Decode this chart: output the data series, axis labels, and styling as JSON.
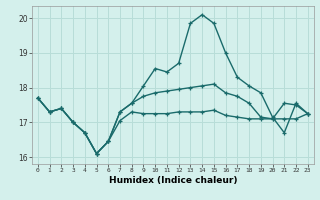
{
  "xlabel": "Humidex (Indice chaleur)",
  "ylabel": "",
  "bg_color": "#d4f0ec",
  "grid_color": "#b8ddd8",
  "line_color": "#1a6b6b",
  "xlim": [
    -0.5,
    23.5
  ],
  "ylim": [
    15.8,
    20.35
  ],
  "yticks": [
    16,
    17,
    18,
    19,
    20
  ],
  "xticks": [
    0,
    1,
    2,
    3,
    4,
    5,
    6,
    7,
    8,
    9,
    10,
    11,
    12,
    13,
    14,
    15,
    16,
    17,
    18,
    19,
    20,
    21,
    22,
    23
  ],
  "series_low_x": [
    0,
    1,
    2,
    3,
    4,
    5,
    6,
    7,
    8,
    9,
    10,
    11,
    12,
    13,
    14,
    15,
    16,
    17,
    18,
    19,
    20,
    21,
    22,
    23
  ],
  "series_low_y": [
    17.7,
    17.3,
    17.4,
    17.0,
    16.7,
    16.1,
    16.45,
    17.05,
    17.3,
    17.25,
    17.25,
    17.25,
    17.3,
    17.3,
    17.3,
    17.35,
    17.2,
    17.15,
    17.1,
    17.1,
    17.1,
    17.1,
    17.1,
    17.25
  ],
  "series_mid_x": [
    0,
    1,
    2,
    3,
    4,
    5,
    6,
    7,
    8,
    9,
    10,
    11,
    12,
    13,
    14,
    15,
    16,
    17,
    18,
    19,
    20,
    21,
    22,
    23
  ],
  "series_mid_y": [
    17.7,
    17.3,
    17.4,
    17.0,
    16.7,
    16.1,
    16.45,
    17.3,
    17.55,
    17.75,
    17.85,
    17.9,
    17.95,
    18.0,
    18.05,
    18.1,
    17.85,
    17.75,
    17.55,
    17.15,
    17.1,
    17.55,
    17.5,
    17.25
  ],
  "series_high_x": [
    0,
    1,
    2,
    3,
    4,
    5,
    6,
    7,
    8,
    9,
    10,
    11,
    12,
    13,
    14,
    15,
    16,
    17,
    18,
    19,
    20,
    21,
    22,
    23
  ],
  "series_high_y": [
    17.7,
    17.3,
    17.4,
    17.0,
    16.7,
    16.1,
    16.45,
    17.3,
    17.55,
    18.05,
    18.55,
    18.45,
    18.7,
    19.85,
    20.1,
    19.85,
    19.0,
    18.3,
    18.05,
    17.85,
    17.15,
    16.7,
    17.55,
    17.25
  ]
}
